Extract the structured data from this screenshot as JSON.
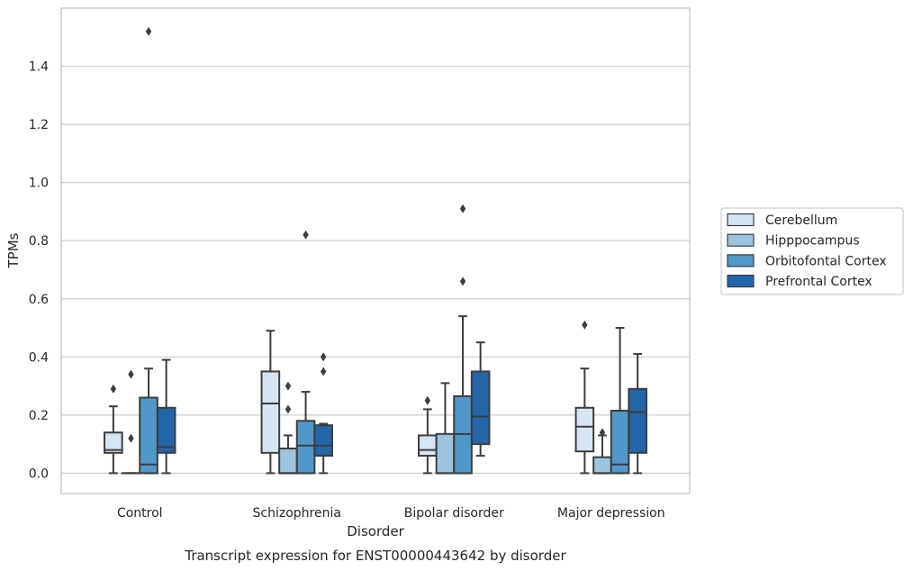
{
  "caption": "Transcript expression for ENST00000443642 by disorder",
  "chart_data": {
    "type": "box",
    "xlabel": "Disorder",
    "ylabel": "TPMs",
    "ylim": [
      -0.07,
      1.6
    ],
    "yticks": [
      0.0,
      0.2,
      0.4,
      0.6,
      0.8,
      1.0,
      1.2,
      1.4
    ],
    "grid": true,
    "legend_position": "right",
    "categories": [
      "Control",
      "Schizophrenia",
      "Bipolar disorder",
      "Major depression"
    ],
    "series": [
      {
        "name": "Cerebellum",
        "color": "#d6e5f4",
        "boxes": [
          {
            "whislo": 0.0,
            "q1": 0.07,
            "med": 0.08,
            "q3": 0.14,
            "whishi": 0.23,
            "fliers": [
              0.29
            ]
          },
          {
            "whislo": 0.0,
            "q1": 0.07,
            "med": 0.24,
            "q3": 0.35,
            "whishi": 0.49,
            "fliers": []
          },
          {
            "whislo": 0.0,
            "q1": 0.06,
            "med": 0.08,
            "q3": 0.13,
            "whishi": 0.22,
            "fliers": [
              0.25
            ]
          },
          {
            "whislo": 0.0,
            "q1": 0.075,
            "med": 0.16,
            "q3": 0.225,
            "whishi": 0.36,
            "fliers": [
              0.51
            ]
          }
        ]
      },
      {
        "name": "Hipppocampus",
        "color": "#9dc5df",
        "boxes": [
          {
            "whislo": 0.0,
            "q1": 0.0,
            "med": 0.0,
            "q3": 0.0,
            "whishi": 0.0,
            "fliers": [
              0.12,
              0.34
            ]
          },
          {
            "whislo": 0.0,
            "q1": 0.0,
            "med": 0.0,
            "q3": 0.085,
            "whishi": 0.13,
            "fliers": [
              0.22,
              0.3
            ]
          },
          {
            "whislo": 0.0,
            "q1": 0.0,
            "med": 0.0,
            "q3": 0.135,
            "whishi": 0.31,
            "fliers": []
          },
          {
            "whislo": 0.0,
            "q1": 0.0,
            "med": 0.0,
            "q3": 0.055,
            "whishi": 0.13,
            "fliers": [
              0.14
            ]
          }
        ]
      },
      {
        "name": "Orbitofontal Cortex",
        "color": "#5098c9",
        "boxes": [
          {
            "whislo": 0.0,
            "q1": 0.0,
            "med": 0.03,
            "q3": 0.26,
            "whishi": 0.36,
            "fliers": [
              1.52
            ]
          },
          {
            "whislo": 0.0,
            "q1": 0.0,
            "med": 0.095,
            "q3": 0.18,
            "whishi": 0.28,
            "fliers": [
              0.82
            ]
          },
          {
            "whislo": 0.0,
            "q1": 0.0,
            "med": 0.135,
            "q3": 0.265,
            "whishi": 0.54,
            "fliers": [
              0.66,
              0.91
            ]
          },
          {
            "whislo": 0.0,
            "q1": 0.0,
            "med": 0.03,
            "q3": 0.215,
            "whishi": 0.5,
            "fliers": []
          }
        ]
      },
      {
        "name": "Prefrontal Cortex",
        "color": "#2265a9",
        "boxes": [
          {
            "whislo": 0.0,
            "q1": 0.07,
            "med": 0.09,
            "q3": 0.225,
            "whishi": 0.39,
            "fliers": []
          },
          {
            "whislo": 0.0,
            "q1": 0.06,
            "med": 0.095,
            "q3": 0.165,
            "whishi": 0.17,
            "fliers": [
              0.35,
              0.4
            ]
          },
          {
            "whislo": 0.06,
            "q1": 0.1,
            "med": 0.195,
            "q3": 0.35,
            "whishi": 0.45,
            "fliers": []
          },
          {
            "whislo": 0.0,
            "q1": 0.07,
            "med": 0.21,
            "q3": 0.29,
            "whishi": 0.41,
            "fliers": []
          }
        ]
      }
    ]
  }
}
